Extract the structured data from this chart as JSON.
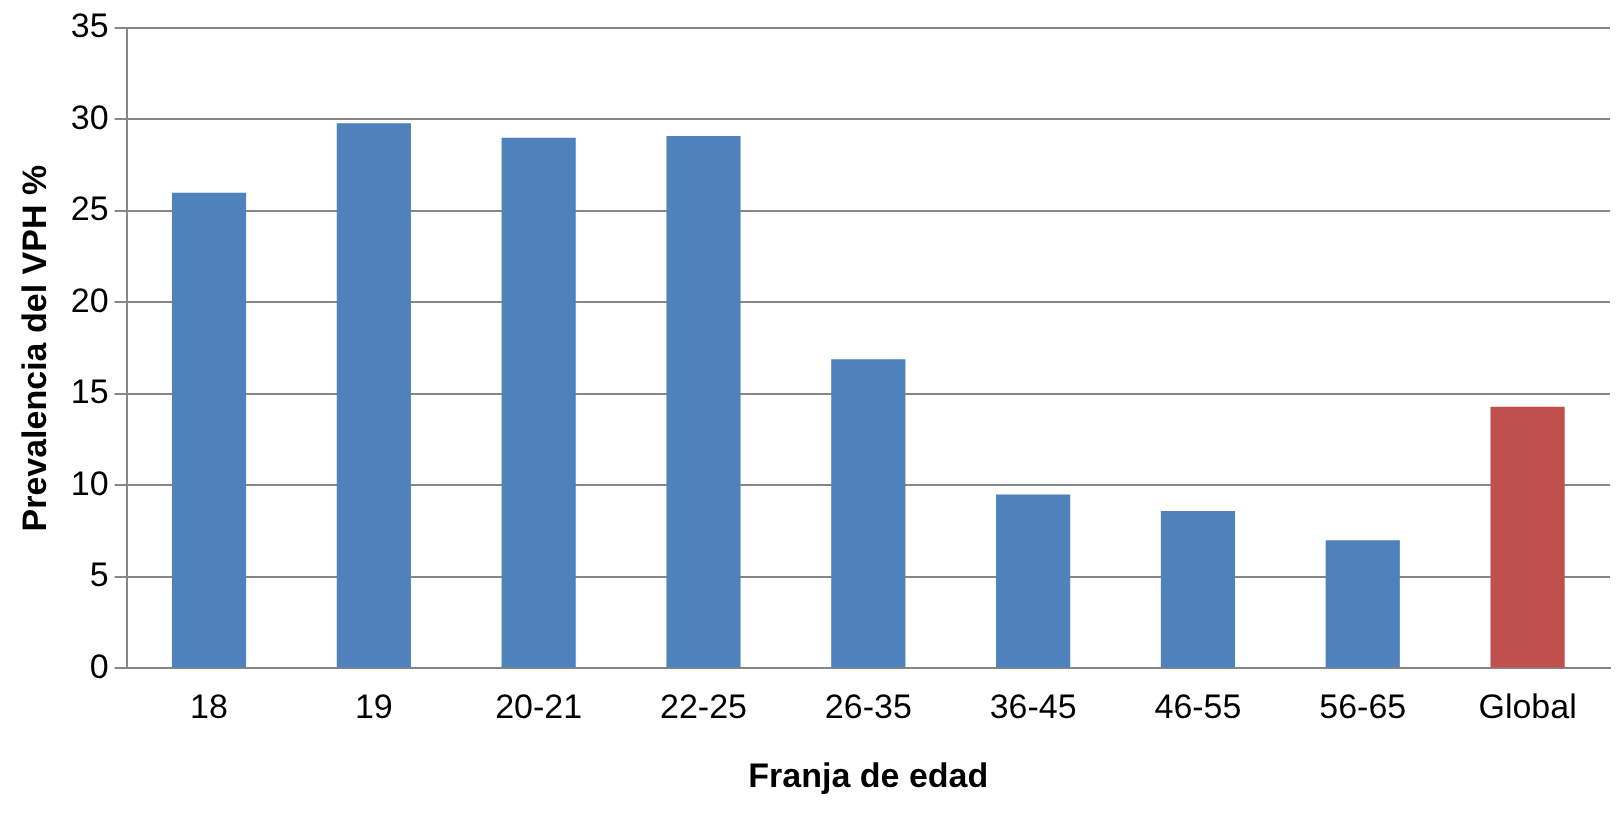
{
  "chart_data": {
    "type": "bar",
    "xlabel": "Franja de edad",
    "ylabel": "Prevalencia del VPH %",
    "categories": [
      "18",
      "19",
      "20-21",
      "22-25",
      "26-35",
      "36-45",
      "46-55",
      "56-65",
      "Global"
    ],
    "values": [
      26,
      29.8,
      29,
      29.1,
      16.9,
      9.5,
      8.6,
      7,
      14.3
    ],
    "colors": [
      "#4f81bd",
      "#4f81bd",
      "#4f81bd",
      "#4f81bd",
      "#4f81bd",
      "#4f81bd",
      "#4f81bd",
      "#4f81bd",
      "#c0504d"
    ],
    "ylim": [
      0,
      35
    ],
    "yticks": [
      0,
      5,
      10,
      15,
      20,
      25,
      30,
      35
    ],
    "grid": "y",
    "legend": false
  }
}
